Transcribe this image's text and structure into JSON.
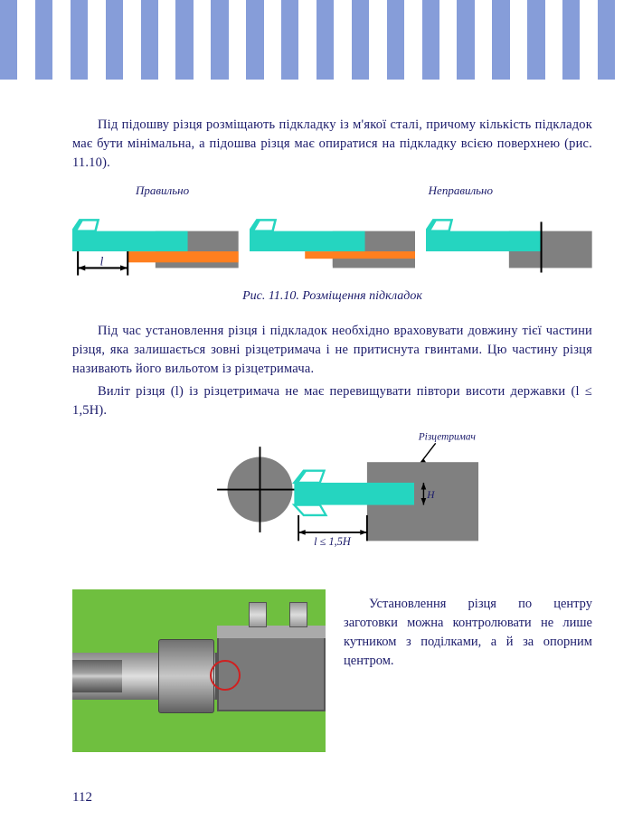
{
  "stripe_count": 36,
  "para1": "Під підошву різця розміщають підкладку із м'якої сталі, причому кількість підкладок має бути мінімальна, а підошва різця має опиратися на підкладку всією поверхнею (рис. 11.10).",
  "label_correct": "Правильно",
  "label_incorrect": "Неправильно",
  "caption1": "Рис. 11.10. Розміщення підкладок",
  "para2": "Під час установлення різця і підкладок необхідно враховувати довжину тієї частини різця, яка залишається зовні різцетримача і не притиснута гвинтами. Цю частину різця називають його вильотом із різцетримача.",
  "para3": "Виліт різця (l) із різцетримача не має перевищувати півтори висоти державки (l ≤ 1,5H).",
  "fig2_label": "Різцетримач",
  "fig2_dim_l": "l ≤ 1,5H",
  "fig2_dim_h": "H",
  "para4": "Установлення різця по центру заготовки можна контролювати не лише кутником з поділками, а й за опорним центром.",
  "pagenum": "112",
  "colors": {
    "stripe": "#869dd9",
    "text": "#1a1a6a",
    "cutter_body": "#25d5c0",
    "cutter_edge": "#ffffff",
    "shim": "#ff7f1f",
    "holder": "#808080",
    "black": "#000000",
    "photo_bg": "#6fbf3f"
  },
  "dim_label_l": "l"
}
